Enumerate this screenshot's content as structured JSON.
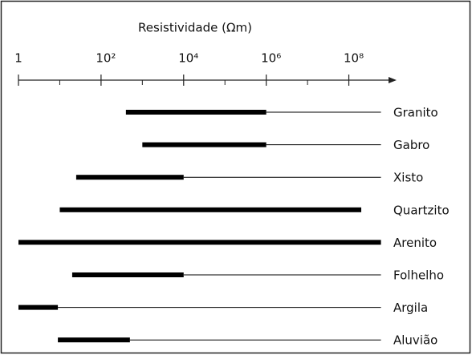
{
  "chart_data": {
    "type": "range",
    "title": "Resistividade (Ωm)",
    "log_scale": true,
    "xlim": [
      1,
      1000000000
    ],
    "xticks": [
      1,
      {
        "value": 100,
        "label": "10²"
      },
      {
        "value": 10000,
        "label": "10⁴"
      },
      {
        "value": 1000000,
        "label": "10⁶"
      },
      {
        "value": 100000000,
        "label": "10⁸"
      }
    ],
    "xminorticks": [
      10,
      1000,
      100000,
      10000000
    ],
    "categories": [
      "Granito",
      "Gabro",
      "Xisto",
      "Quartzito",
      "Arenito",
      "Folhelho",
      "Argila",
      "Aluvião"
    ],
    "typical": [
      [
        400,
        1000000
      ],
      [
        1000,
        1000000
      ],
      [
        25,
        10000
      ],
      [
        10,
        200000000
      ],
      [
        1,
        600000000
      ],
      [
        20,
        10000
      ],
      [
        1,
        9
      ],
      [
        9,
        500
      ]
    ],
    "extended": [
      [
        1000000,
        600000000
      ],
      [
        1000000,
        600000000
      ],
      [
        10000,
        600000000
      ],
      null,
      null,
      [
        10000,
        600000000
      ],
      [
        9,
        600000000
      ],
      [
        500,
        600000000
      ]
    ],
    "color": "#000000"
  }
}
